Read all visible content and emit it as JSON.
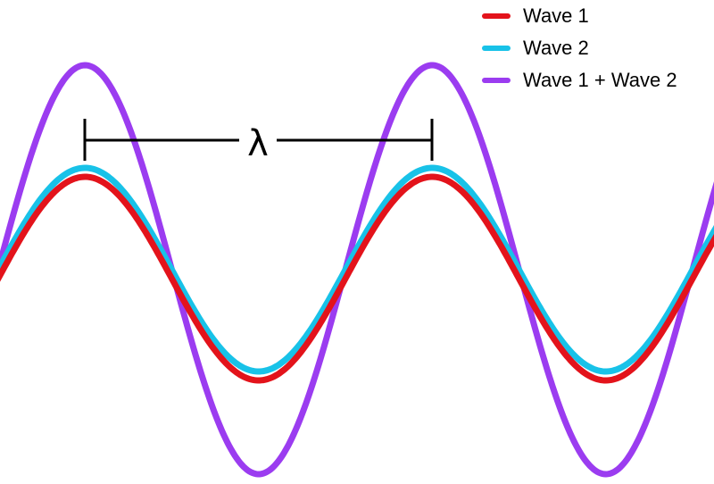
{
  "colors": {
    "wave1": "#e3131b",
    "wave2": "#18c2e8",
    "sum": "#9b3cf0",
    "marker": "#000000"
  },
  "legend": {
    "items": [
      {
        "key": "wave1",
        "label": "Wave 1"
      },
      {
        "key": "wave2",
        "label": "Wave 2"
      },
      {
        "key": "sum",
        "label": "Wave 1 + Wave 2"
      }
    ]
  },
  "wavelength_marker": {
    "symbol": "λ"
  }
}
